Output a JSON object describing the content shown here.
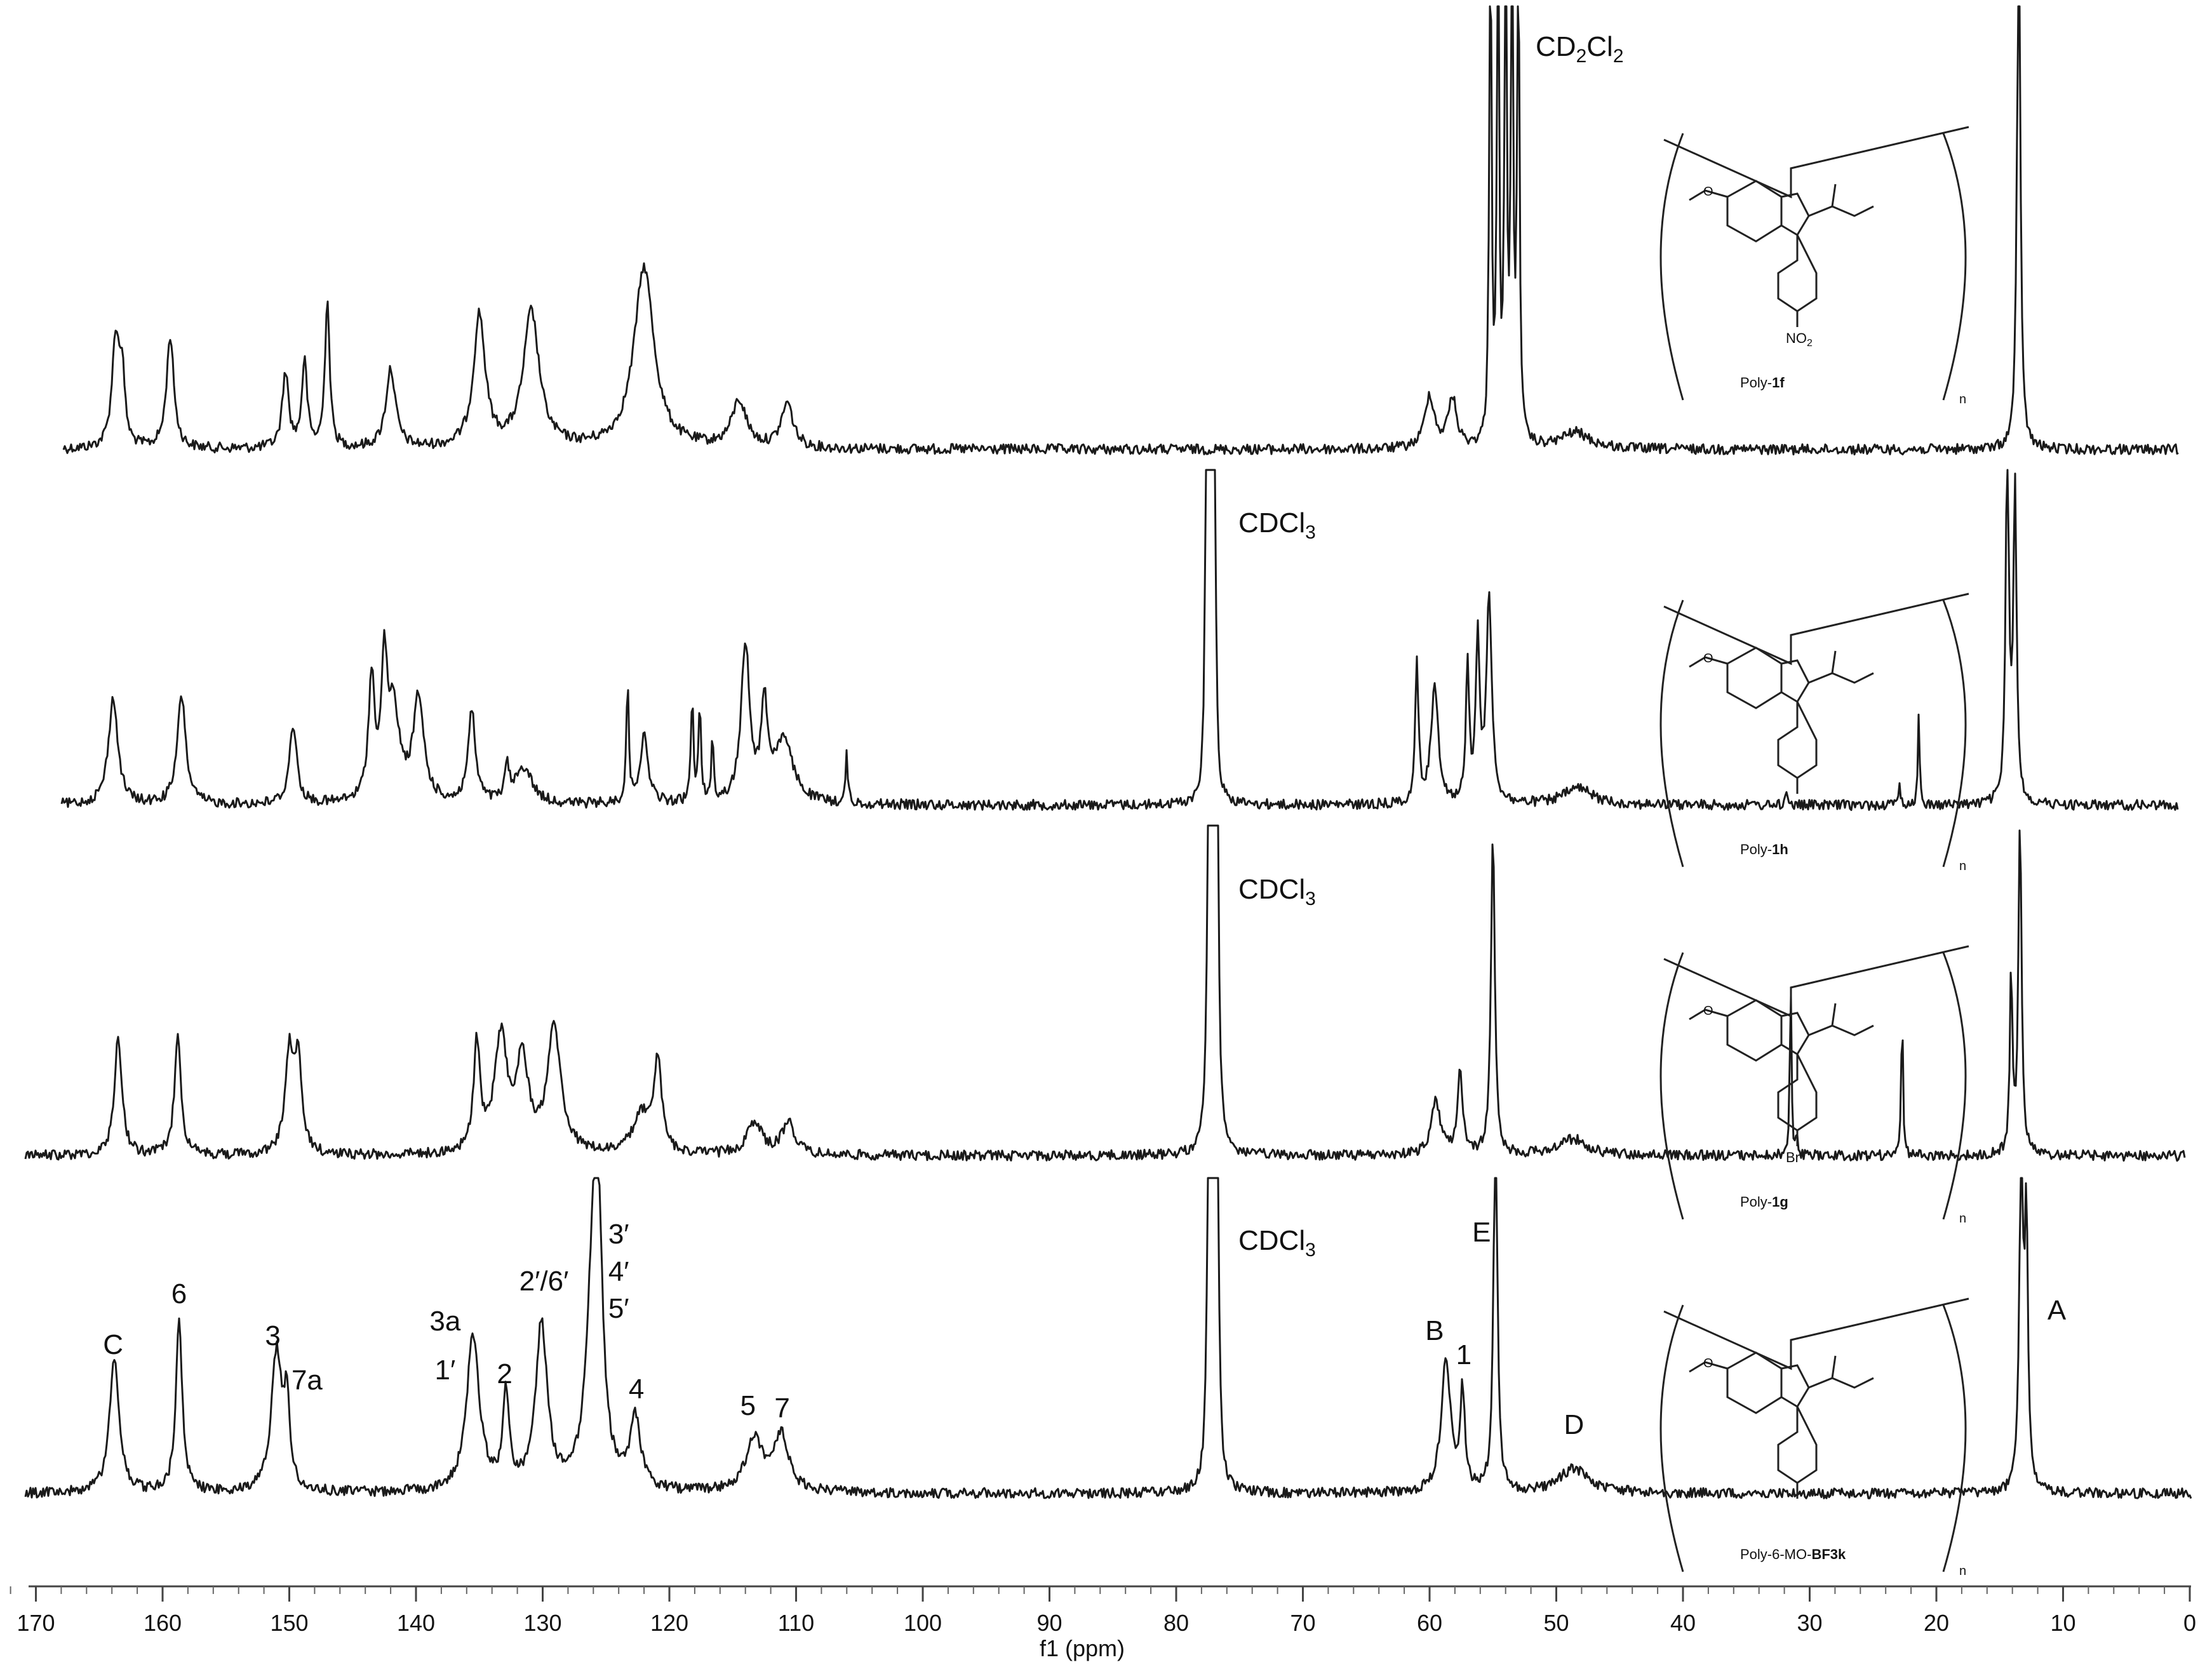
{
  "chart_data": {
    "type": "line",
    "title": "",
    "xlabel": "f1 (ppm)",
    "ylabel": "",
    "x_reversed": true,
    "xlim": [
      172,
      0
    ],
    "ticks": [
      170,
      160,
      150,
      140,
      130,
      120,
      110,
      100,
      90,
      80,
      70,
      60,
      50,
      40,
      30,
      20,
      10,
      0
    ],
    "tick_labels": [
      "170",
      "160",
      "150",
      "140",
      "130",
      "120",
      "110",
      "100",
      "90",
      "80",
      "70",
      "60",
      "50",
      "40",
      "30",
      "20",
      "10",
      "0"
    ],
    "grid": false,
    "legend": "none",
    "series": [
      {
        "name": "Poly-1f",
        "solvent": "CD2Cl2",
        "peaks": [
          {
            "ppm": 163.7,
            "height": 0.66,
            "width": 0.35
          },
          {
            "ppm": 163.2,
            "height": 0.4,
            "width": 0.25
          },
          {
            "ppm": 159.4,
            "height": 0.68,
            "width": 0.35
          },
          {
            "ppm": 150.3,
            "height": 0.46,
            "width": 0.3
          },
          {
            "ppm": 148.8,
            "height": 0.52,
            "width": 0.25
          },
          {
            "ppm": 147.0,
            "height": 0.9,
            "width": 0.22
          },
          {
            "ppm": 142.0,
            "height": 0.48,
            "width": 0.45
          },
          {
            "ppm": 135.0,
            "height": 0.8,
            "width": 0.55
          },
          {
            "ppm": 130.9,
            "height": 0.82,
            "width": 0.75
          },
          {
            "ppm": 122.0,
            "height": 1.1,
            "width": 0.95
          },
          {
            "ppm": 114.5,
            "height": 0.28,
            "width": 0.7
          },
          {
            "ppm": 110.7,
            "height": 0.27,
            "width": 0.55
          },
          {
            "ppm": 60.0,
            "height": 0.32,
            "width": 0.45
          },
          {
            "ppm": 58.2,
            "height": 0.3,
            "width": 0.4
          },
          {
            "ppm": 55.2,
            "height": 3.4,
            "width": 0.1
          },
          {
            "ppm": 54.6,
            "height": 3.4,
            "width": 0.1
          },
          {
            "ppm": 54.0,
            "height": 3.4,
            "width": 0.1
          },
          {
            "ppm": 53.5,
            "height": 3.4,
            "width": 0.1
          },
          {
            "ppm": 53.0,
            "height": 3.4,
            "width": 0.1
          },
          {
            "ppm": 48.5,
            "height": 0.1,
            "width": 1.4
          },
          {
            "ppm": 13.5,
            "height": 3.4,
            "width": 0.15
          }
        ]
      },
      {
        "name": "Poly-1h",
        "solvent": "CDCl3",
        "peaks": [
          {
            "ppm": 163.9,
            "height": 0.64,
            "width": 0.45
          },
          {
            "ppm": 158.5,
            "height": 0.66,
            "width": 0.4
          },
          {
            "ppm": 149.7,
            "height": 0.48,
            "width": 0.35
          },
          {
            "ppm": 143.5,
            "height": 0.72,
            "width": 0.3
          },
          {
            "ppm": 142.5,
            "height": 0.75,
            "width": 0.25
          },
          {
            "ppm": 141.8,
            "height": 0.55,
            "width": 0.6
          },
          {
            "ppm": 139.8,
            "height": 0.62,
            "width": 0.5
          },
          {
            "ppm": 135.6,
            "height": 0.55,
            "width": 0.35
          },
          {
            "ppm": 132.8,
            "height": 0.2,
            "width": 0.2
          },
          {
            "ppm": 131.5,
            "height": 0.22,
            "width": 0.8
          },
          {
            "ppm": 123.3,
            "height": 0.7,
            "width": 0.12
          },
          {
            "ppm": 122.0,
            "height": 0.4,
            "width": 0.4
          },
          {
            "ppm": 118.2,
            "height": 0.62,
            "width": 0.12
          },
          {
            "ppm": 117.6,
            "height": 0.55,
            "width": 0.12
          },
          {
            "ppm": 116.6,
            "height": 0.35,
            "width": 0.12
          },
          {
            "ppm": 114.0,
            "height": 0.95,
            "width": 0.4
          },
          {
            "ppm": 112.5,
            "height": 0.55,
            "width": 0.3
          },
          {
            "ppm": 111.0,
            "height": 0.38,
            "width": 0.9
          },
          {
            "ppm": 106.0,
            "height": 0.3,
            "width": 0.1
          },
          {
            "ppm": 77.6,
            "height": 3.3,
            "width": 0.1
          },
          {
            "ppm": 77.3,
            "height": 3.3,
            "width": 0.1
          },
          {
            "ppm": 77.0,
            "height": 3.3,
            "width": 0.1
          },
          {
            "ppm": 61.0,
            "height": 0.85,
            "width": 0.15
          },
          {
            "ppm": 59.6,
            "height": 0.7,
            "width": 0.35
          },
          {
            "ppm": 57.0,
            "height": 0.85,
            "width": 0.15
          },
          {
            "ppm": 56.2,
            "height": 1.0,
            "width": 0.18
          },
          {
            "ppm": 55.3,
            "height": 1.25,
            "width": 0.25
          },
          {
            "ppm": 48.3,
            "height": 0.1,
            "width": 1.4
          },
          {
            "ppm": 31.8,
            "height": 0.12,
            "width": 0.08
          },
          {
            "ppm": 22.9,
            "height": 0.15,
            "width": 0.08
          },
          {
            "ppm": 21.4,
            "height": 0.55,
            "width": 0.08
          },
          {
            "ppm": 14.4,
            "height": 2.2,
            "width": 0.15
          },
          {
            "ppm": 13.8,
            "height": 1.9,
            "width": 0.15
          }
        ]
      },
      {
        "name": "Poly-1g",
        "solvent": "CDCl3",
        "peaks": [
          {
            "ppm": 163.5,
            "height": 0.72,
            "width": 0.35
          },
          {
            "ppm": 158.8,
            "height": 0.75,
            "width": 0.3
          },
          {
            "ppm": 150.0,
            "height": 0.6,
            "width": 0.4
          },
          {
            "ppm": 149.3,
            "height": 0.52,
            "width": 0.35
          },
          {
            "ppm": 135.2,
            "height": 0.65,
            "width": 0.3
          },
          {
            "ppm": 133.3,
            "height": 0.7,
            "width": 0.6
          },
          {
            "ppm": 131.6,
            "height": 0.55,
            "width": 0.55
          },
          {
            "ppm": 129.1,
            "height": 0.75,
            "width": 0.65
          },
          {
            "ppm": 122.2,
            "height": 0.24,
            "width": 0.8
          },
          {
            "ppm": 120.9,
            "height": 0.55,
            "width": 0.35
          },
          {
            "ppm": 113.3,
            "height": 0.2,
            "width": 0.7
          },
          {
            "ppm": 110.6,
            "height": 0.2,
            "width": 0.6
          },
          {
            "ppm": 77.4,
            "height": 3.4,
            "width": 0.12
          },
          {
            "ppm": 77.1,
            "height": 3.4,
            "width": 0.12
          },
          {
            "ppm": 76.8,
            "height": 3.4,
            "width": 0.12
          },
          {
            "ppm": 59.5,
            "height": 0.32,
            "width": 0.45
          },
          {
            "ppm": 57.6,
            "height": 0.48,
            "width": 0.25
          },
          {
            "ppm": 55.0,
            "height": 1.95,
            "width": 0.18
          },
          {
            "ppm": 48.7,
            "height": 0.1,
            "width": 1.4
          },
          {
            "ppm": 31.5,
            "height": 1.05,
            "width": 0.08
          },
          {
            "ppm": 31.0,
            "height": 0.12,
            "width": 0.08
          },
          {
            "ppm": 22.7,
            "height": 0.9,
            "width": 0.08
          },
          {
            "ppm": 14.1,
            "height": 1.1,
            "width": 0.12
          },
          {
            "ppm": 13.4,
            "height": 2.05,
            "width": 0.15
          }
        ]
      },
      {
        "name": "Poly-6-MO-BF3k",
        "solvent": "CDCl3",
        "peaks": [
          {
            "ppm": 163.8,
            "height": 0.82,
            "width": 0.45
          },
          {
            "ppm": 158.7,
            "height": 1.06,
            "width": 0.3
          },
          {
            "ppm": 151.0,
            "height": 0.85,
            "width": 0.5
          },
          {
            "ppm": 150.2,
            "height": 0.5,
            "width": 0.25
          },
          {
            "ppm": 135.5,
            "height": 0.95,
            "width": 0.6
          },
          {
            "ppm": 132.9,
            "height": 0.56,
            "width": 0.3
          },
          {
            "ppm": 130.1,
            "height": 1.0,
            "width": 0.55
          },
          {
            "ppm": 126.0,
            "height": 1.3,
            "width": 0.6
          },
          {
            "ppm": 125.6,
            "height": 1.1,
            "width": 0.4
          },
          {
            "ppm": 122.7,
            "height": 0.42,
            "width": 0.5
          },
          {
            "ppm": 113.3,
            "height": 0.32,
            "width": 0.8
          },
          {
            "ppm": 111.2,
            "height": 0.34,
            "width": 0.7
          },
          {
            "ppm": 77.4,
            "height": 3.4,
            "width": 0.12
          },
          {
            "ppm": 77.1,
            "height": 3.4,
            "width": 0.12
          },
          {
            "ppm": 76.8,
            "height": 3.4,
            "width": 0.12
          },
          {
            "ppm": 58.7,
            "height": 0.8,
            "width": 0.45
          },
          {
            "ppm": 57.4,
            "height": 0.58,
            "width": 0.22
          },
          {
            "ppm": 54.8,
            "height": 2.3,
            "width": 0.18
          },
          {
            "ppm": 48.6,
            "height": 0.15,
            "width": 1.4
          },
          {
            "ppm": 13.3,
            "height": 2.3,
            "width": 0.16
          },
          {
            "ppm": 12.9,
            "height": 1.6,
            "width": 0.15
          }
        ]
      }
    ],
    "annotations": {
      "solvent_labels": [
        {
          "series": "Poly-1f",
          "ppm": 52.3
        },
        {
          "series": "Poly-1h",
          "ppm": 76.5,
          "text": "CDCl3"
        },
        {
          "series": "Poly-1g",
          "ppm": 76.5,
          "text": "CDCl3"
        },
        {
          "series": "Poly-6-MO-BF3k",
          "ppm": 76.5,
          "text": "CDCl3"
        }
      ],
      "peak_labels": [
        {
          "ppm": 163.9,
          "text": "C"
        },
        {
          "ppm": 158.7,
          "text": "6"
        },
        {
          "ppm": 151.3,
          "text": "3"
        },
        {
          "ppm": 148.6,
          "text": "7a"
        },
        {
          "ppm": 137.7,
          "text": "3a"
        },
        {
          "ppm": 137.7,
          "text": "1′"
        },
        {
          "ppm": 133.0,
          "text": "2"
        },
        {
          "ppm": 129.9,
          "text": "2′/6′"
        },
        {
          "ppm": 124.0,
          "text": "3′"
        },
        {
          "ppm": 124.0,
          "text": "4′"
        },
        {
          "ppm": 124.0,
          "text": "5′"
        },
        {
          "ppm": 122.6,
          "text": "4"
        },
        {
          "ppm": 113.8,
          "text": "5"
        },
        {
          "ppm": 111.1,
          "text": "7"
        },
        {
          "ppm": 59.6,
          "text": "B"
        },
        {
          "ppm": 57.3,
          "text": "1"
        },
        {
          "ppm": 55.9,
          "text": "E"
        },
        {
          "ppm": 48.6,
          "text": "D"
        },
        {
          "ppm": 10.5,
          "text": "A"
        }
      ]
    }
  },
  "solvents": {
    "cd2cl2": {
      "prefix": "CD",
      "sub1": "2",
      "mid": "Cl",
      "sub2": "2"
    },
    "cdcl3": {
      "prefix": "CDCl",
      "sub": "3"
    }
  },
  "structures": [
    {
      "caption_prefix": "Poly-",
      "caption_bold": "1f",
      "substituent": "NO",
      "substituent_sub": "2",
      "repeat": "n"
    },
    {
      "caption_prefix": "Poly-",
      "caption_bold": "1h",
      "substituent": "",
      "substituent_sub": "",
      "repeat": "n"
    },
    {
      "caption_prefix": "Poly-",
      "caption_bold": "1g",
      "substituent": "Br",
      "substituent_sub": "",
      "repeat": "n"
    },
    {
      "caption_prefix": "Poly-6-MO-",
      "caption_bold": "BF3k",
      "substituent": "",
      "substituent_sub": "",
      "repeat": "n"
    }
  ],
  "structure_atom_labels": [
    "D",
    "7",
    "7a",
    "6",
    "1",
    "2",
    "O",
    "E",
    "C",
    "B",
    "5",
    "3a",
    "3",
    "4",
    "6'",
    "2'",
    "3'",
    "5'",
    "4'"
  ],
  "colors": {
    "trace": "#1a1a1a",
    "axis": "#444444",
    "background": "#ffffff"
  }
}
